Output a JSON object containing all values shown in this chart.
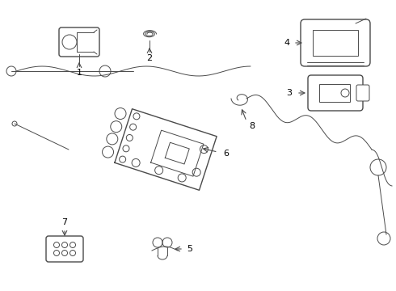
{
  "bg_color": "#ffffff",
  "line_color": "#4a4a4a",
  "label_color": "#000000",
  "figsize": [
    4.9,
    3.6
  ],
  "dpi": 100,
  "lw": 1.0,
  "lw_thin": 0.7
}
